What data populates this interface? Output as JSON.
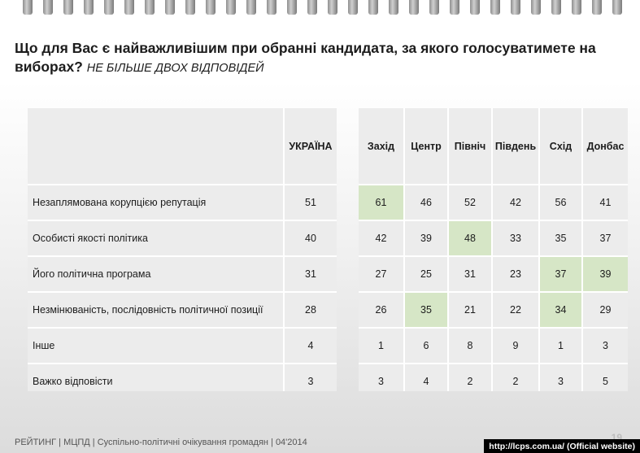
{
  "title": "Що для Вас є найважливішим при обранні кандидата, за якого голосуватимете на виборах?",
  "subtitle": "НЕ БІЛЬШЕ ДВОХ ВІДПОВІДЕЙ",
  "footer": "РЕЙТИНГ | МЦПД | Суспільно-політичні очікування громадян | 04'2014",
  "page_number": "19",
  "source_badge": "http://lcps.com.ua/ (Official website)",
  "highlight_color": "#d6e6c6",
  "chart_data": {
    "type": "table",
    "title": "Що для Вас є найважливішим при обранні кандидата, за якого голосуватимете на виборах?",
    "columns": [
      "УКРАЇНА",
      "Захід",
      "Центр",
      "Північ",
      "Південь",
      "Схід",
      "Донбас"
    ],
    "rows": [
      {
        "label": "Незаплямована корупцією репутація",
        "values": [
          51,
          61,
          46,
          52,
          42,
          56,
          41
        ],
        "highlight": [
          1
        ]
      },
      {
        "label": "Особисті якості політика",
        "values": [
          40,
          42,
          39,
          48,
          33,
          35,
          37
        ],
        "highlight": [
          3
        ]
      },
      {
        "label": "Його політична програма",
        "values": [
          31,
          27,
          25,
          31,
          23,
          37,
          39
        ],
        "highlight": [
          5,
          6
        ]
      },
      {
        "label": "Незмінюваність, послідовність політичної позиції",
        "values": [
          28,
          26,
          35,
          21,
          22,
          34,
          29
        ],
        "highlight": [
          2,
          5
        ]
      },
      {
        "label": "Інше",
        "values": [
          4,
          1,
          6,
          8,
          9,
          1,
          3
        ],
        "highlight": []
      },
      {
        "label": "Важко відповісти",
        "values": [
          3,
          3,
          4,
          2,
          2,
          3,
          5
        ],
        "highlight": []
      }
    ]
  }
}
